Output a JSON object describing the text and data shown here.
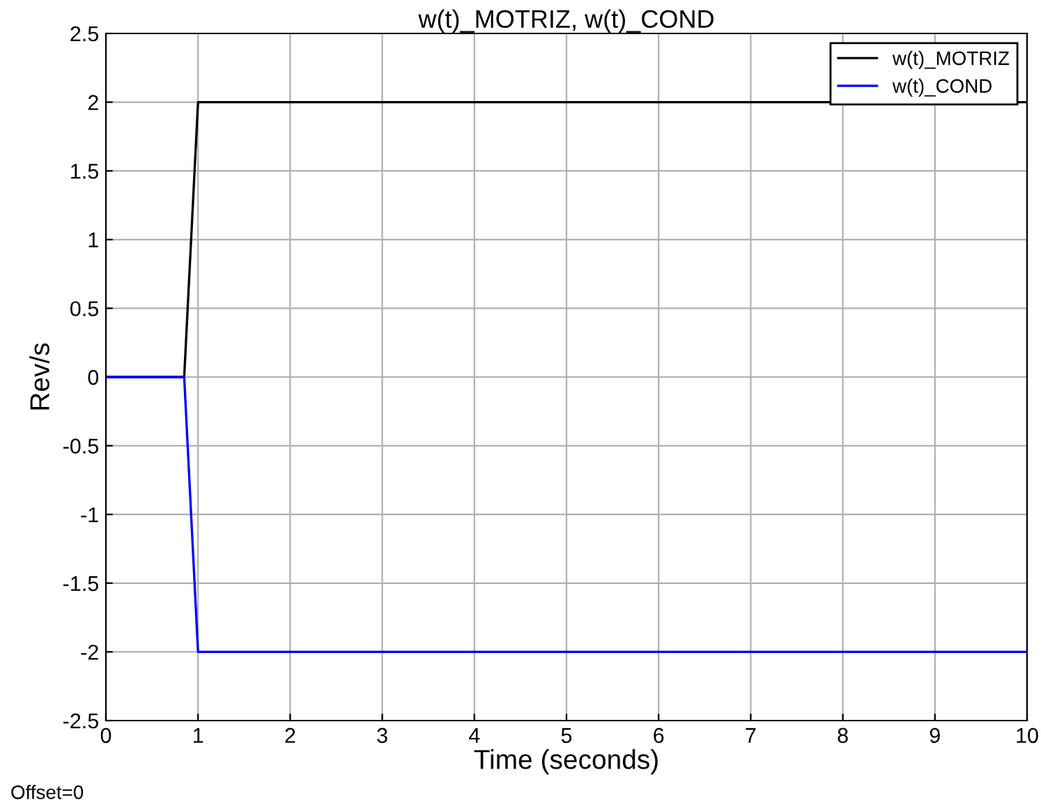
{
  "chart_data": {
    "type": "line",
    "title": "w(t)_MOTRIZ, w(t)_COND",
    "xlabel": "Time (seconds)",
    "ylabel": "Rev/s",
    "series": [
      {
        "name": "w(t)_MOTRIZ",
        "color": "#000000",
        "x": [
          0,
          0.85,
          1.0,
          10
        ],
        "values": [
          0,
          0,
          2,
          2
        ]
      },
      {
        "name": "w(t)_COND",
        "color": "#0000ff",
        "x": [
          0,
          0.85,
          1.0,
          10
        ],
        "values": [
          0,
          0,
          -2,
          -2
        ]
      }
    ],
    "xlim": [
      0,
      10
    ],
    "xticks": [
      0,
      1,
      2,
      3,
      4,
      5,
      6,
      7,
      8,
      9,
      10
    ],
    "ylim": [
      -2.5,
      2.5
    ],
    "yticks": [
      -2.5,
      -2,
      -1.5,
      -1,
      -0.5,
      0,
      0.5,
      1,
      1.5,
      2,
      2.5
    ],
    "grid": true,
    "legend": "top right",
    "annotations": [
      "Offset=0"
    ]
  }
}
